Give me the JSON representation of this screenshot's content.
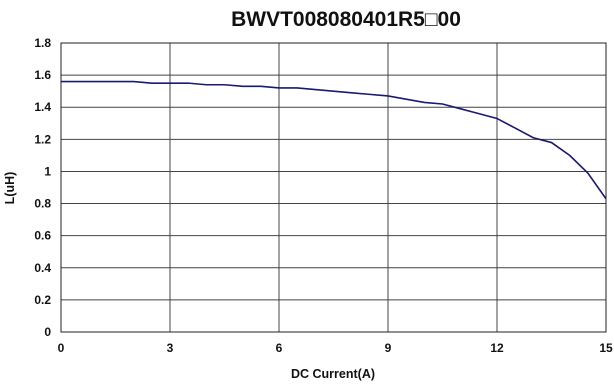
{
  "chart_data": {
    "type": "line",
    "title": "BWVT008080401R5□00",
    "xlabel": "DC Current(A)",
    "ylabel": "L(uH)",
    "xlim": [
      0,
      15
    ],
    "ylim": [
      0,
      1.8
    ],
    "xticks": [
      "0",
      "3",
      "6",
      "9",
      "12",
      "15"
    ],
    "yticks": [
      "0",
      "0.2",
      "0.4",
      "0.6",
      "0.8",
      "1",
      "1.2",
      "1.4",
      "1.6",
      "1.8"
    ],
    "grid": true,
    "legend": "none",
    "line_color": "#1a1a6e",
    "series": [
      {
        "x": [
          0,
          0.5,
          1,
          1.5,
          2,
          2.5,
          3,
          3.5,
          4,
          4.5,
          5,
          5.5,
          6,
          6.5,
          7,
          7.5,
          8,
          8.5,
          9,
          9.5,
          10,
          10.5,
          11,
          11.5,
          12,
          12.5,
          13,
          13.5,
          14,
          14.5,
          15
        ],
        "y": [
          1.56,
          1.56,
          1.56,
          1.56,
          1.56,
          1.55,
          1.55,
          1.55,
          1.54,
          1.54,
          1.53,
          1.53,
          1.52,
          1.52,
          1.51,
          1.5,
          1.49,
          1.48,
          1.47,
          1.45,
          1.43,
          1.42,
          1.39,
          1.36,
          1.33,
          1.27,
          1.21,
          1.18,
          1.1,
          0.99,
          0.83
        ]
      }
    ]
  }
}
